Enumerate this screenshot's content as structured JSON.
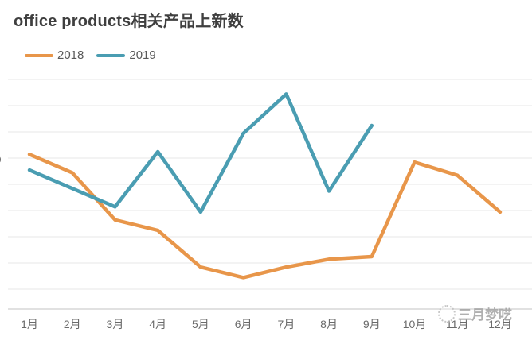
{
  "title": "office products相关产品上新数",
  "legend": {
    "items": [
      {
        "label": "2018",
        "color": "#E8964A"
      },
      {
        "label": "2019",
        "color": "#4A9DB2"
      }
    ]
  },
  "y_axis": {
    "partial_label": "0"
  },
  "watermark": {
    "text": "三月梦呓"
  },
  "chart_data": {
    "type": "line",
    "title": "office products相关产品上新数",
    "categories": [
      "1月",
      "2月",
      "3月",
      "4月",
      "5月",
      "6月",
      "7月",
      "8月",
      "9月",
      "10月",
      "11月",
      "12月"
    ],
    "series": [
      {
        "name": "2018",
        "color": "#E8964A",
        "values": [
          5.9,
          5.2,
          3.4,
          3.0,
          1.6,
          1.2,
          1.6,
          1.9,
          2.0,
          5.6,
          5.1,
          3.7
        ]
      },
      {
        "name": "2019",
        "color": "#4A9DB2",
        "values": [
          5.3,
          4.6,
          3.9,
          6.0,
          3.7,
          6.7,
          8.2,
          4.5,
          7.0
        ]
      }
    ],
    "xlabel": "",
    "ylabel": "",
    "ylim": [
      0,
      9
    ],
    "grid": true,
    "legend_position": "top-left",
    "y_tick_labels_visible": false,
    "note_units": "y values estimated in gridline units; numeric y-axis labels are cropped out of the image"
  }
}
